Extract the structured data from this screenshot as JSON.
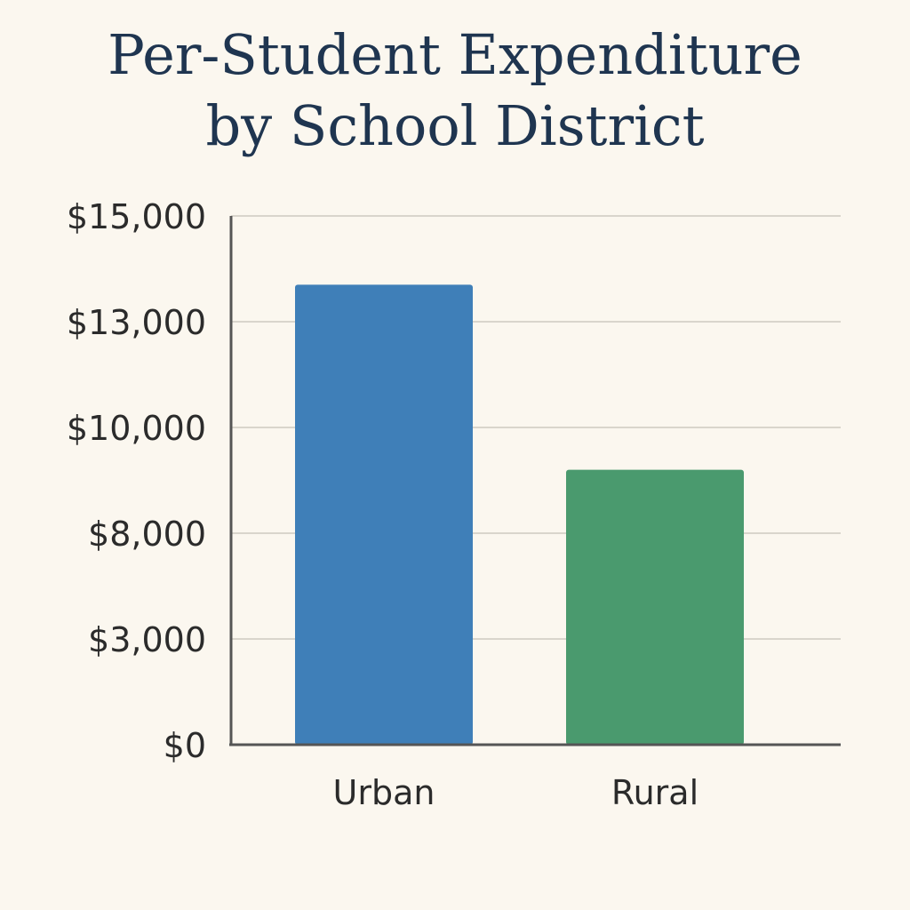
{
  "chart_data": {
    "type": "bar",
    "title_lines": [
      "Per-Student Expenditure",
      "by School District"
    ],
    "xlabel": "",
    "ylabel": "",
    "categories": [
      "Urban",
      "Rural"
    ],
    "values": [
      13700,
      9200
    ],
    "bar_colors": [
      "#3f7fb8",
      "#4a9a6e"
    ],
    "y_ticks": [
      {
        "label": "$15,000",
        "level": 5
      },
      {
        "label": "$13,000",
        "level": 4
      },
      {
        "label": "$10,000",
        "level": 3
      },
      {
        "label": "$8,000",
        "level": 2
      },
      {
        "label": "$3,000",
        "level": 1
      },
      {
        "label": "$0",
        "level": 0
      }
    ],
    "grid": true,
    "legend": "none"
  }
}
